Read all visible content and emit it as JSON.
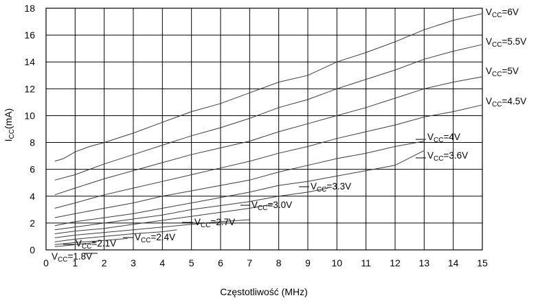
{
  "chart_data": {
    "type": "line",
    "title": "",
    "xlabel": "Częstotliwość (MHz)",
    "ylabel": {
      "main": "I",
      "sub": "CC",
      "rest": "(mA)"
    },
    "xlim": [
      0,
      15
    ],
    "ylim": [
      0,
      18
    ],
    "xticks": [
      0,
      1,
      2,
      3,
      4,
      5,
      6,
      7,
      8,
      9,
      10,
      11,
      12,
      13,
      14,
      15
    ],
    "yticks": [
      0,
      2,
      4,
      6,
      8,
      10,
      12,
      14,
      16,
      18
    ],
    "grid": true,
    "legend": "inline labels",
    "line_color": "#3a3a3a",
    "series": [
      {
        "name": {
          "main": "V",
          "sub": "CC",
          "rest": "=6V"
        },
        "x": [
          0.3,
          0.6,
          1,
          1.5,
          2,
          3,
          4,
          5,
          6,
          7,
          8,
          9,
          10,
          11,
          12,
          13,
          14,
          15
        ],
        "y": [
          6.6,
          6.8,
          7.3,
          7.7,
          8.0,
          8.7,
          9.5,
          10.3,
          10.9,
          11.7,
          12.5,
          13.0,
          14.0,
          14.7,
          15.5,
          16.4,
          17.1,
          17.6
        ]
      },
      {
        "name": {
          "main": "V",
          "sub": "CC",
          "rest": "=5.5V"
        },
        "x": [
          0.3,
          1,
          2,
          3,
          4,
          5,
          6,
          7,
          8,
          9,
          10,
          11,
          12,
          13,
          14,
          15
        ],
        "y": [
          5.2,
          5.6,
          6.4,
          7.1,
          7.8,
          8.5,
          9.1,
          9.8,
          10.6,
          11.2,
          12.0,
          12.7,
          13.4,
          14.2,
          14.8,
          15.3
        ]
      },
      {
        "name": {
          "main": "V",
          "sub": "CC",
          "rest": "=5V"
        },
        "x": [
          0.3,
          1,
          2,
          3,
          4,
          5,
          6,
          7,
          8,
          9,
          10,
          11,
          12,
          13,
          14,
          15
        ],
        "y": [
          4.1,
          4.6,
          5.3,
          5.9,
          6.5,
          7.1,
          7.6,
          8.1,
          8.8,
          9.4,
          10.0,
          10.6,
          11.3,
          12.0,
          12.5,
          12.9
        ]
      },
      {
        "name": {
          "main": "V",
          "sub": "CC",
          "rest": "=4.5V"
        },
        "x": [
          0.3,
          1,
          2,
          3,
          4,
          5,
          6,
          7,
          8,
          9,
          10,
          11,
          12,
          13,
          14,
          15
        ],
        "y": [
          3.1,
          3.5,
          4.1,
          4.6,
          5.1,
          5.6,
          6.1,
          6.6,
          7.2,
          7.7,
          8.3,
          8.8,
          9.3,
          9.9,
          10.3,
          10.8
        ]
      },
      {
        "name": {
          "main": "V",
          "sub": "CC",
          "rest": "=4V"
        },
        "x": [
          0.3,
          1,
          2,
          3,
          4,
          5,
          6,
          7,
          8,
          9,
          10,
          11,
          12,
          13
        ],
        "y": [
          2.4,
          2.7,
          3.1,
          3.5,
          4.0,
          4.4,
          4.8,
          5.2,
          5.8,
          6.3,
          6.8,
          7.2,
          7.7,
          8.1
        ]
      },
      {
        "name": {
          "main": "V",
          "sub": "CC",
          "rest": "=3.6V"
        },
        "x": [
          0.3,
          1,
          2,
          3,
          4,
          5,
          6,
          7,
          8,
          9,
          10,
          11,
          12,
          13
        ],
        "y": [
          1.8,
          2.1,
          2.4,
          2.7,
          3.1,
          3.5,
          3.9,
          4.3,
          4.8,
          5.1,
          5.5,
          5.9,
          6.3,
          7.4
        ]
      },
      {
        "name": {
          "main": "V",
          "sub": "CC",
          "rest": "=3.3V"
        },
        "x": [
          0.3,
          1,
          2,
          3,
          4,
          5,
          6,
          7,
          8,
          9,
          9.7
        ],
        "y": [
          1.5,
          1.7,
          2.0,
          2.3,
          2.6,
          3.0,
          3.3,
          3.6,
          4.0,
          4.3,
          4.6
        ]
      },
      {
        "name": {
          "main": "V",
          "sub": "CC",
          "rest": "=3.0V"
        },
        "x": [
          0.3,
          1,
          2,
          3,
          4,
          5,
          6,
          7,
          7.8
        ],
        "y": [
          1.2,
          1.4,
          1.6,
          1.9,
          2.2,
          2.5,
          2.8,
          3.1,
          3.4
        ]
      },
      {
        "name": {
          "main": "V",
          "sub": "CC",
          "rest": "=2.7V"
        },
        "x": [
          0.3,
          1,
          2,
          3,
          4,
          5,
          6,
          7
        ],
        "y": [
          0.9,
          1.1,
          1.3,
          1.5,
          1.7,
          1.9,
          2.1,
          2.25
        ]
      },
      {
        "name": {
          "main": "V",
          "sub": "CC",
          "rest": "=2.4V"
        },
        "x": [
          0.3,
          1,
          2,
          3,
          4,
          4.5
        ],
        "y": [
          0.6,
          0.8,
          1.0,
          1.2,
          1.35,
          1.5
        ]
      },
      {
        "name": {
          "main": "V",
          "sub": "CC",
          "rest": "=2.1V"
        },
        "x": [
          0.3,
          1,
          2,
          2.8
        ],
        "y": [
          0.4,
          0.55,
          0.7,
          0.85
        ]
      },
      {
        "name": {
          "main": "V",
          "sub": "CC",
          "rest": "=1.8V"
        },
        "x": [
          0.3,
          0.6,
          1,
          1.7
        ],
        "y": [
          0.25,
          0.3,
          0.4,
          0.55
        ]
      }
    ]
  }
}
